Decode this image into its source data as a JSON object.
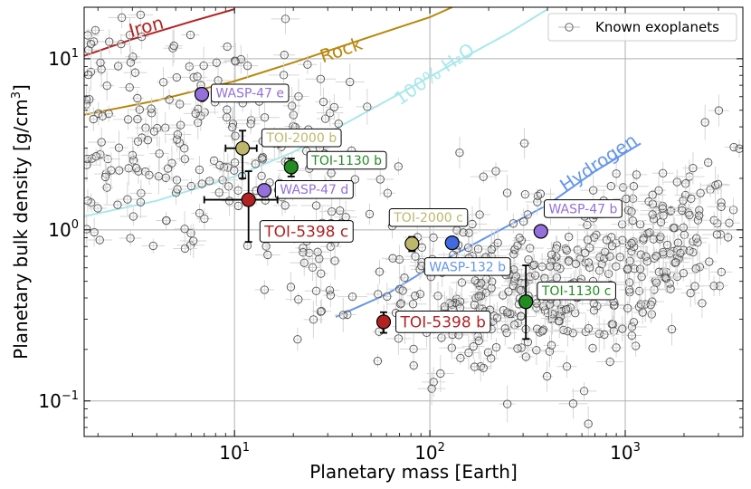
{
  "chart_data": {
    "type": "scatter",
    "xlabel": "Planetary mass [Earth]",
    "ylabel_main": "Planetary bulk density [g/cm",
    "ylabel_sup": "3",
    "ylabel_close": "]",
    "x_scale": "log",
    "y_scale": "log",
    "xlim": [
      1.7,
      4000
    ],
    "ylim": [
      0.062,
      20
    ],
    "xticks": [
      {
        "value": 10,
        "base": "10",
        "exp": "1"
      },
      {
        "value": 100,
        "base": "10",
        "exp": "2"
      },
      {
        "value": 1000,
        "base": "10",
        "exp": "3"
      }
    ],
    "yticks": [
      {
        "value": 0.1,
        "base": "10",
        "exp": "−1"
      },
      {
        "value": 1,
        "base": "10",
        "exp": "0"
      },
      {
        "value": 10,
        "base": "10",
        "exp": "1"
      }
    ],
    "grid": true,
    "legend": {
      "position": "top-right",
      "label": "Known exoplanets"
    },
    "composition_curves": [
      {
        "name": "Iron",
        "color": "#b22222",
        "points": [
          [
            1.7,
            10.4
          ],
          [
            3,
            13
          ],
          [
            6,
            16.5
          ],
          [
            10,
            19.5
          ]
        ],
        "label_at": [
          3.6,
          14.2
        ],
        "label_angle": -15
      },
      {
        "name": "Rock",
        "color": "#b8860b",
        "points": [
          [
            1.7,
            4.7
          ],
          [
            4,
            5.7
          ],
          [
            10,
            7.4
          ],
          [
            20,
            9.5
          ],
          [
            50,
            13.5
          ],
          [
            100,
            17.5
          ],
          [
            130,
            20
          ]
        ],
        "label_at": [
          36,
          10.4
        ],
        "label_angle": -19
      },
      {
        "name": "100% H₂O",
        "color": "#a8e8ec",
        "points": [
          [
            1.7,
            1.2
          ],
          [
            4,
            1.48
          ],
          [
            10,
            2.05
          ],
          [
            20,
            2.85
          ],
          [
            40,
            4.4
          ],
          [
            80,
            6.8
          ],
          [
            150,
            10.2
          ],
          [
            250,
            14
          ],
          [
            400,
            19.5
          ]
        ],
        "label_at": [
          110,
          7.6
        ],
        "label_angle": -35
      },
      {
        "name": "Hydrogen",
        "color": "#6495ed",
        "points": [
          [
            33,
            0.31
          ],
          [
            60,
            0.42
          ],
          [
            100,
            0.6
          ],
          [
            200,
            0.92
          ],
          [
            400,
            1.4
          ],
          [
            700,
            2.2
          ],
          [
            1200,
            3.2
          ]
        ],
        "label_at": [
          760,
          2.3
        ],
        "label_angle": -34
      }
    ],
    "highlighted_planets": [
      {
        "name": "WASP-47 e",
        "x": 6.8,
        "y": 6.2,
        "color": "#9370db",
        "text_color": "#9370db",
        "xerr": 0,
        "yerr_lo": 0,
        "yerr_hi": 0,
        "label_at": [
          7.6,
          6.3
        ]
      },
      {
        "name": "TOI-2000 b",
        "x": 11,
        "y": 3.0,
        "color": "#bdb76b",
        "text_color": "#bdb76b",
        "xerr_lo": 2,
        "xerr_hi": 2,
        "yerr_lo": 1.0,
        "yerr_hi": 0.8,
        "label_at": [
          13.8,
          3.45
        ]
      },
      {
        "name": "TOI-1130 b",
        "x": 19.5,
        "y": 2.33,
        "color": "#228b22",
        "text_color": "#228b22",
        "xerr_lo": 0.8,
        "xerr_hi": 0.8,
        "yerr_lo": 0.28,
        "yerr_hi": 0.28,
        "label_at": [
          23.5,
          2.55
        ]
      },
      {
        "name": "WASP-47 d",
        "x": 14.2,
        "y": 1.7,
        "color": "#9370db",
        "text_color": "#9370db",
        "xerr_lo": 0.8,
        "xerr_hi": 0.8,
        "yerr_lo": 0.12,
        "yerr_hi": 0.12,
        "label_at": [
          16.2,
          1.72
        ]
      },
      {
        "name": "TOI-5398 c",
        "x": 11.8,
        "y": 1.5,
        "color": "#b22222",
        "text_color": "#b22222",
        "xerr_lo": 4.8,
        "xerr_hi": 4.8,
        "yerr_lo": 0.65,
        "yerr_hi": 0.7,
        "label_at": [
          13.5,
          0.98
        ]
      },
      {
        "name": "TOI-2000 c",
        "x": 81,
        "y": 0.83,
        "color": "#bdb76b",
        "text_color": "#bdb76b",
        "xerr_lo": 4,
        "xerr_hi": 4,
        "yerr_lo": 0.08,
        "yerr_hi": 0.08,
        "label_at": [
          62,
          1.18
        ]
      },
      {
        "name": "WASP-132 b",
        "x": 130,
        "y": 0.84,
        "color": "#4169e1",
        "text_color": "#6495ed",
        "xerr_lo": 6,
        "xerr_hi": 6,
        "yerr_lo": 0.06,
        "yerr_hi": 0.06,
        "label_at": [
          94,
          0.61
        ]
      },
      {
        "name": "WASP-47 b",
        "x": 370,
        "y": 0.98,
        "color": "#9370db",
        "text_color": "#9370db",
        "xerr_lo": 10,
        "xerr_hi": 10,
        "yerr_lo": 0.06,
        "yerr_hi": 0.06,
        "label_at": [
          385,
          1.33
        ]
      },
      {
        "name": "TOI-1130 c",
        "x": 310,
        "y": 0.38,
        "color": "#228b22",
        "text_color": "#228b22",
        "xerr_lo": 8,
        "xerr_hi": 8,
        "yerr_lo": 0.15,
        "yerr_hi": 0.24,
        "label_at": [
          355,
          0.44
        ]
      },
      {
        "name": "TOI-5398 b",
        "x": 58,
        "y": 0.29,
        "color": "#b22222",
        "text_color": "#b22222",
        "xerr_lo": 3,
        "xerr_hi": 3,
        "yerr_lo": 0.04,
        "yerr_hi": 0.04,
        "label_at": [
          67,
          0.29
        ]
      }
    ]
  }
}
